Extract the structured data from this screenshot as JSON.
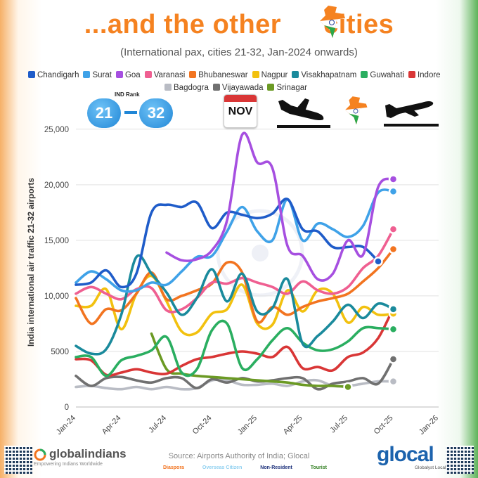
{
  "header": {
    "title_left": "...and the other",
    "title_right": "cities",
    "subtitle": "(International pax, cities 21-32, Jan-2024 onwards)"
  },
  "legend": [
    {
      "name": "Chandigarh",
      "color": "#1f5cc9"
    },
    {
      "name": "Surat",
      "color": "#3fa2e8"
    },
    {
      "name": "Goa",
      "color": "#a64fe0"
    },
    {
      "name": "Varanasi",
      "color": "#ef5f91"
    },
    {
      "name": "Bhubaneswar",
      "color": "#f27420"
    },
    {
      "name": "Nagpur",
      "color": "#f2c10f"
    },
    {
      "name": "Visakhapatnam",
      "color": "#1a8a9c"
    },
    {
      "name": "Guwahati",
      "color": "#2aae60"
    },
    {
      "name": "Indore",
      "color": "#d93636"
    },
    {
      "name": "Bagdogra",
      "color": "#b9bcc4"
    },
    {
      "name": "Vijayawada",
      "color": "#707070"
    },
    {
      "name": "Srinagar",
      "color": "#6b9a24"
    }
  ],
  "badge": {
    "rank_label": "IND Rank",
    "from": "21",
    "to": "32"
  },
  "calendar": {
    "label": "NOV"
  },
  "chart_data": {
    "type": "line",
    "ylabel": "India international air traffic 21-32 airports",
    "ylim": [
      0,
      26000
    ],
    "yticks": [
      0,
      5000,
      10000,
      15000,
      20000,
      25000
    ],
    "ytick_labels": [
      "0",
      "5000",
      "10,000",
      "15,000",
      "20,000",
      "25,000"
    ],
    "xlim": [
      0,
      24
    ],
    "xticks": [
      0,
      3,
      6,
      9,
      12,
      15,
      18,
      21,
      24
    ],
    "xtick_labels": [
      "Jan-24",
      "Apr-24",
      "Jul-24",
      "Oct-24",
      "Jan-25",
      "Apr-25",
      "Jul-25",
      "Oct-25",
      "Jan-26"
    ],
    "series": [
      {
        "name": "Chandigarh",
        "start": 0,
        "values": [
          11000,
          11200,
          12300,
          10800,
          12000,
          17500,
          18200,
          18000,
          18400,
          16100,
          17500,
          17300,
          17000,
          17400,
          18700,
          16000,
          15800,
          14400,
          14400,
          14400,
          13100
        ]
      },
      {
        "name": "Surat",
        "start": 0,
        "values": [
          11200,
          12200,
          11500,
          10500,
          10500,
          11200,
          11000,
          12200,
          13500,
          13600,
          15800,
          18000,
          15800,
          15000,
          18700,
          15000,
          16500,
          16000,
          15300,
          16300,
          19300,
          19400
        ]
      },
      {
        "name": "Goa",
        "start": 6,
        "values": [
          13900,
          13200,
          13300,
          14100,
          16800,
          24500,
          22000,
          21500,
          14500,
          13600,
          11500,
          12000,
          15000,
          13700,
          19800,
          20500
        ]
      },
      {
        "name": "Varanasi",
        "start": 0,
        "values": [
          10200,
          10800,
          10200,
          9700,
          10600,
          10700,
          8700,
          8800,
          9800,
          11200,
          11100,
          11600,
          11200,
          10800,
          10200,
          11300,
          10500,
          10200,
          10800,
          12500,
          13600,
          16000
        ]
      },
      {
        "name": "Bhubaneswar",
        "start": 0,
        "values": [
          9800,
          7500,
          8800,
          8700,
          10200,
          12100,
          9700,
          10000,
          10500,
          11100,
          13000,
          12100,
          7700,
          9000,
          8300,
          9000,
          9500,
          9800,
          10200,
          11300,
          12500,
          14200
        ]
      },
      {
        "name": "Nagpur",
        "start": 0,
        "values": [
          9100,
          9100,
          10600,
          7000,
          10200,
          11800,
          9500,
          6800,
          6700,
          8400,
          8800,
          11000,
          7500,
          7400,
          10500,
          8600,
          10500,
          10200,
          7600,
          9000,
          8300,
          8400
        ]
      },
      {
        "name": "Visakhapatnam",
        "start": 0,
        "values": [
          5500,
          4800,
          5200,
          8300,
          13500,
          12000,
          10300,
          8300,
          9800,
          12400,
          9500,
          12000,
          8600,
          8900,
          11500,
          5700,
          6400,
          7700,
          9200,
          8000,
          9300,
          8800
        ]
      },
      {
        "name": "Guwahati",
        "start": 0,
        "values": [
          4500,
          4500,
          2800,
          4200,
          4600,
          5100,
          6300,
          3100,
          3400,
          6900,
          7500,
          3500,
          4300,
          6000,
          7100,
          5800,
          5100,
          5200,
          5900,
          7100,
          7100,
          7000
        ]
      },
      {
        "name": "Indore",
        "start": 0,
        "values": [
          4300,
          4200,
          2900,
          3100,
          3400,
          3100,
          3000,
          3700,
          4300,
          4500,
          4800,
          5000,
          4800,
          4500,
          5400,
          3500,
          3600,
          3300,
          4500,
          4900,
          6200,
          8900
        ]
      },
      {
        "name": "Bagdogra",
        "start": 0,
        "values": [
          1800,
          1900,
          1700,
          1600,
          1800,
          1600,
          1800,
          1600,
          1700,
          2400,
          2400,
          2000,
          2000,
          2100,
          1900,
          2300,
          2400,
          1900,
          1900,
          2100,
          2300,
          2300
        ]
      },
      {
        "name": "Vijayawada",
        "start": 0,
        "values": [
          2800,
          1900,
          2600,
          2700,
          2400,
          2200,
          2600,
          2600,
          1700,
          2500,
          2200,
          2600,
          2300,
          2400,
          2600,
          2600,
          1600,
          2100,
          2300,
          2600,
          2100,
          4300
        ]
      },
      {
        "name": "Srinagar",
        "start": 5,
        "values": [
          6600,
          3400,
          3000,
          2800,
          2700,
          2600,
          2500,
          2400,
          2300,
          2200,
          2000,
          1900,
          1900,
          1800
        ]
      }
    ]
  },
  "footer": {
    "source": "Source: Airports Authority of India; Glocal",
    "brand_left": "globalindians",
    "brand_left_tag": "Empowering Indians Worldwide",
    "brand_right": "glocal",
    "brand_right_tag": "Globalyst Local",
    "tags": [
      {
        "label": "Diaspora",
        "color": "#f27420"
      },
      {
        "label": "Overseas Citizen",
        "color": "#8fd0f0"
      },
      {
        "label": "Non-Resident",
        "color": "#1b2f7a"
      },
      {
        "label": "Tourist",
        "color": "#2e7d1e"
      }
    ]
  }
}
